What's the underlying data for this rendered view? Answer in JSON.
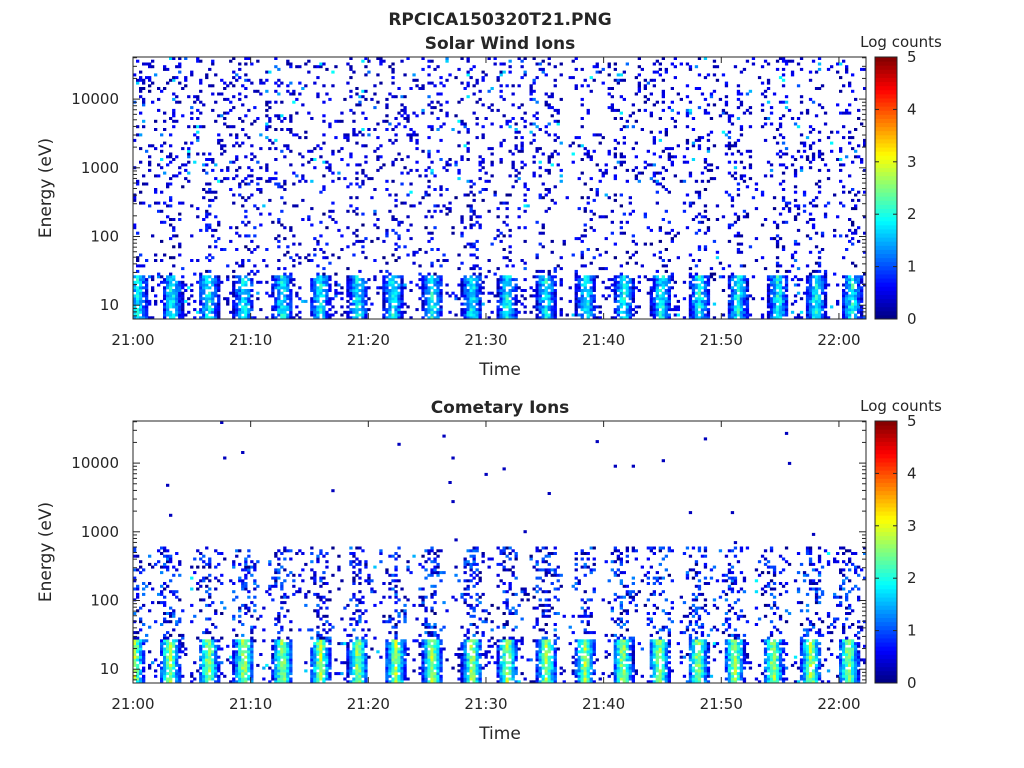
{
  "figure_title": "RPCICA150320T21.PNG",
  "chart_data": [
    {
      "type": "heatmap",
      "title": "Solar Wind Ions",
      "xlabel": "Time",
      "ylabel": "Energy (eV)",
      "yscale": "log",
      "ylim": [
        6.3,
        41000
      ],
      "xlim_minutes": [
        0,
        62.3
      ],
      "xticks": [
        "21:00",
        "21:10",
        "21:20",
        "21:30",
        "21:40",
        "21:50",
        "22:00"
      ],
      "yticks": [
        "10",
        "100",
        "1000",
        "10000"
      ],
      "colorbar": {
        "label": "Log counts",
        "range": [
          0,
          5
        ],
        "ticks": [
          "0",
          "1",
          "2",
          "3",
          "4",
          "5"
        ],
        "colormap": "jet"
      },
      "burst_times_min": [
        0.3,
        3.2,
        6.3,
        9.3,
        12.6,
        15.8,
        19,
        22,
        25.3,
        28.7,
        31.7,
        35,
        38.4,
        41.6,
        44.8,
        48,
        51.3,
        54.7,
        57.9,
        61
      ],
      "low_energy_peak_log_counts": 2.0,
      "scatter_density": 0.09
    },
    {
      "type": "heatmap",
      "title": "Cometary Ions",
      "xlabel": "Time",
      "ylabel": "Energy (eV)",
      "yscale": "log",
      "ylim": [
        6.3,
        41000
      ],
      "xlim_minutes": [
        0,
        62.3
      ],
      "xticks": [
        "21:00",
        "21:10",
        "21:20",
        "21:30",
        "21:40",
        "21:50",
        "22:00"
      ],
      "yticks": [
        "10",
        "100",
        "1000",
        "10000"
      ],
      "colorbar": {
        "label": "Log counts",
        "range": [
          0,
          5
        ],
        "ticks": [
          "0",
          "1",
          "2",
          "3",
          "4",
          "5"
        ],
        "colormap": "jet"
      },
      "burst_times_min": [
        0,
        3,
        6.3,
        9.3,
        12.6,
        15.8,
        19,
        22.2,
        25.3,
        28.7,
        31.7,
        35,
        38.3,
        41.5,
        44.6,
        47.9,
        51,
        54.3,
        57.5,
        60.7
      ],
      "low_energy_peak_log_counts": 2.8,
      "scatter_density": 0.06
    }
  ]
}
